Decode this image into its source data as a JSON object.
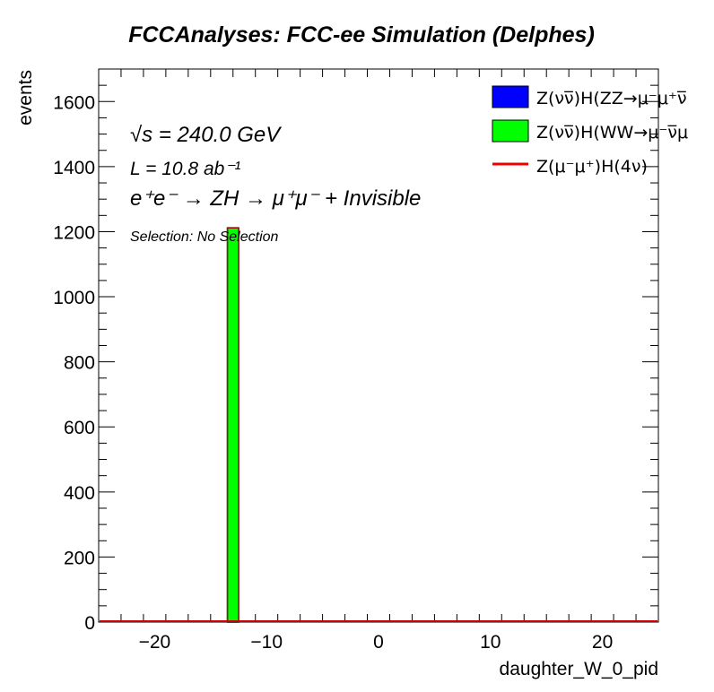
{
  "chart_data": {
    "type": "bar",
    "title": "FCCAnalyses: FCC-ee Simulation (Delphes)",
    "xlabel": "daughter_W_0_pid",
    "ylabel": "events",
    "xlim": [
      -25,
      25
    ],
    "ylim": [
      0,
      1700
    ],
    "x_ticks": [
      -20,
      -10,
      0,
      10,
      20
    ],
    "x_tick_labels": [
      "−20",
      "−10",
      "0",
      "10",
      "20"
    ],
    "y_ticks": [
      0,
      200,
      400,
      600,
      800,
      1000,
      1200,
      1400,
      1600
    ],
    "y_tick_labels": [
      "0",
      "200",
      "400",
      "600",
      "800",
      "1000",
      "1200",
      "1400",
      "1600"
    ],
    "grid": false,
    "legend_placement": "top-right",
    "series": [
      {
        "name": "Z(νν̅)H(ZZ→μ⁻μ⁺ν̅",
        "kind": "stacked-histogram",
        "color": "#0000ff",
        "bins": []
      },
      {
        "name": "Z(νν̅)H(WW→μ⁻ν̅μ",
        "kind": "stacked-histogram",
        "color": "#00ff00",
        "bins": [
          {
            "lo": -13.5,
            "hi": -12.5,
            "value": 1212
          }
        ]
      },
      {
        "name": "Z(μ⁻μ⁺)H(4ν)",
        "kind": "line",
        "color": "#ff0000",
        "bins": []
      }
    ]
  },
  "annotations": {
    "sqrt_s": "√s = 240.0 GeV",
    "lumi": "L = 10.8 ab⁻¹",
    "process": "e⁺e⁻ → ZH → μ⁺μ⁻ + Invisible",
    "selection": "Selection: No Selection"
  }
}
